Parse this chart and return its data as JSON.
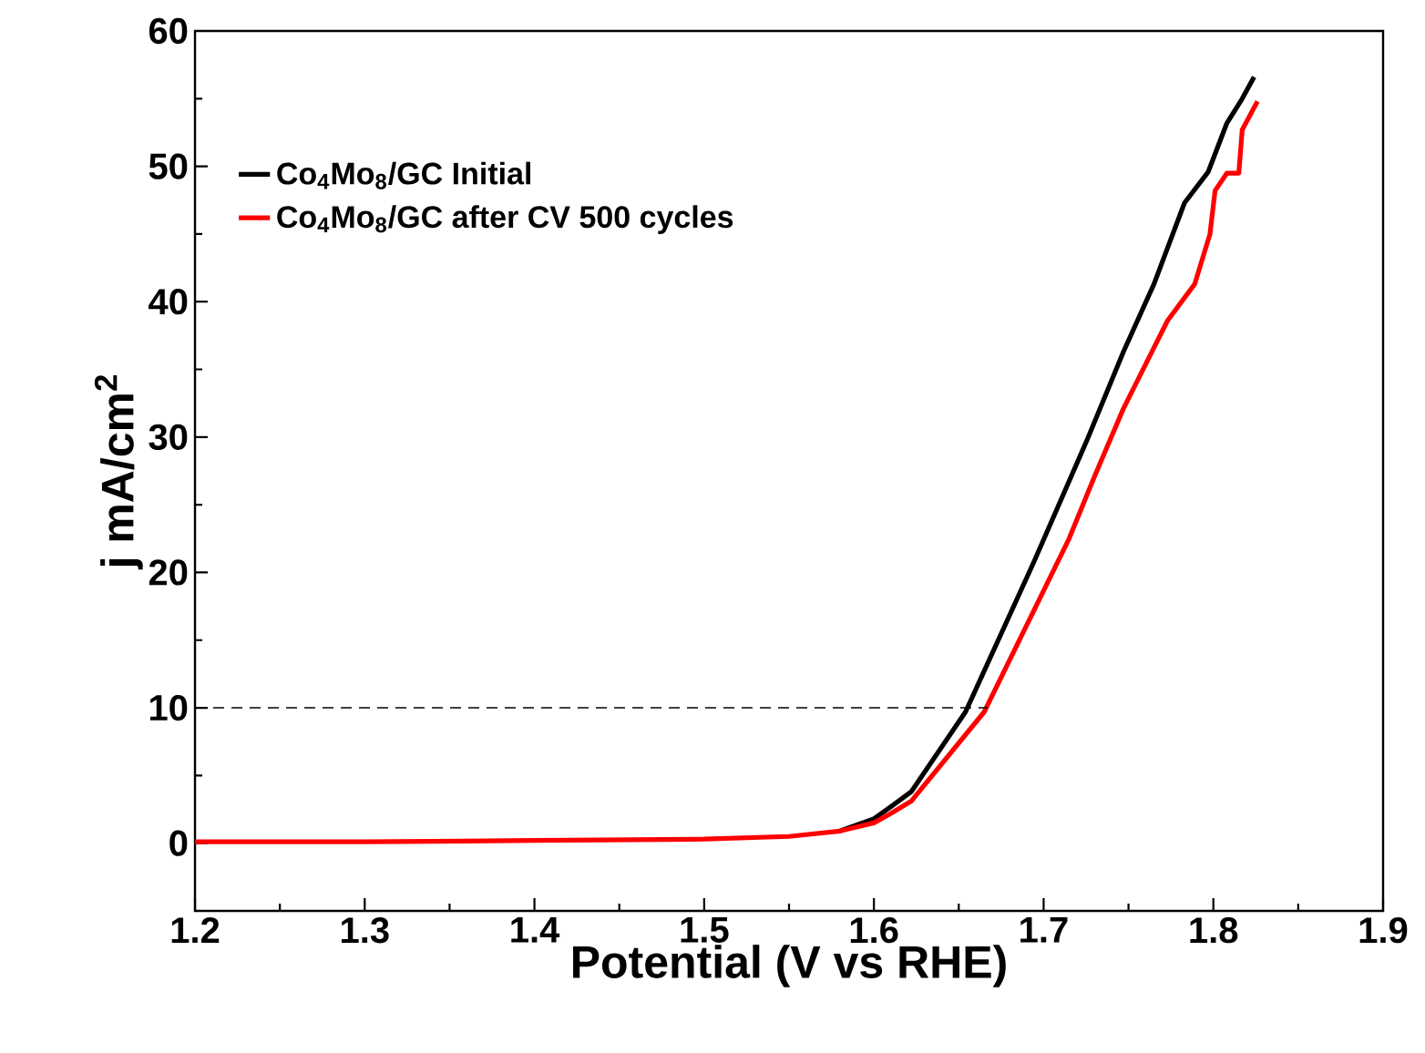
{
  "chart_data": {
    "type": "line",
    "xlabel": "Potential (V vs RHE)",
    "ylabel": "j mA/cm$^{2}$",
    "xlim": [
      1.2,
      1.9
    ],
    "ylim": [
      -5,
      60
    ],
    "xticks": [
      1.2,
      1.3,
      1.4,
      1.5,
      1.6,
      1.7,
      1.8,
      1.9
    ],
    "yticks": [
      0,
      10,
      20,
      30,
      40,
      50,
      60
    ],
    "legend": "top left",
    "grid": false,
    "marker": "none",
    "series": [
      {
        "name": "Co$_{4}$Mo$_{8}$/GC Initial",
        "color": "#000000",
        "line_style": "solid",
        "x": [
          1.58,
          1.6,
          1.61,
          1.622,
          1.654,
          1.694,
          1.726,
          1.747,
          1.765,
          1.783,
          1.797,
          1.808,
          1.817,
          1.824
        ],
        "values": [
          0.9,
          1.8,
          2.7,
          3.8,
          9.7,
          20.7,
          29.9,
          36.3,
          41.3,
          47.3,
          49.6,
          53.2,
          55.0,
          56.6
        ]
      },
      {
        "name": "Co$_{4}$Mo$_{8}$/GC after CV 500 cycles",
        "color": "#ff0000",
        "line_style": "solid",
        "x": [
          1.2,
          1.3,
          1.4,
          1.5,
          1.55,
          1.58,
          1.6,
          1.61,
          1.622,
          1.665,
          1.715,
          1.73,
          1.747,
          1.773,
          1.789,
          1.798,
          1.801,
          1.808,
          1.815,
          1.817,
          1.826
        ],
        "values": [
          0.1,
          0.1,
          0.2,
          0.3,
          0.5,
          0.9,
          1.5,
          2.2,
          3.1,
          9.7,
          22.5,
          27.1,
          32.1,
          38.6,
          41.3,
          45.0,
          48.2,
          49.5,
          49.5,
          52.7,
          54.8
        ]
      },
      {
        "color": "#000000",
        "line_style": "dashed",
        "x": [
          1.2,
          1.667
        ],
        "values": [
          10,
          10
        ]
      }
    ]
  }
}
